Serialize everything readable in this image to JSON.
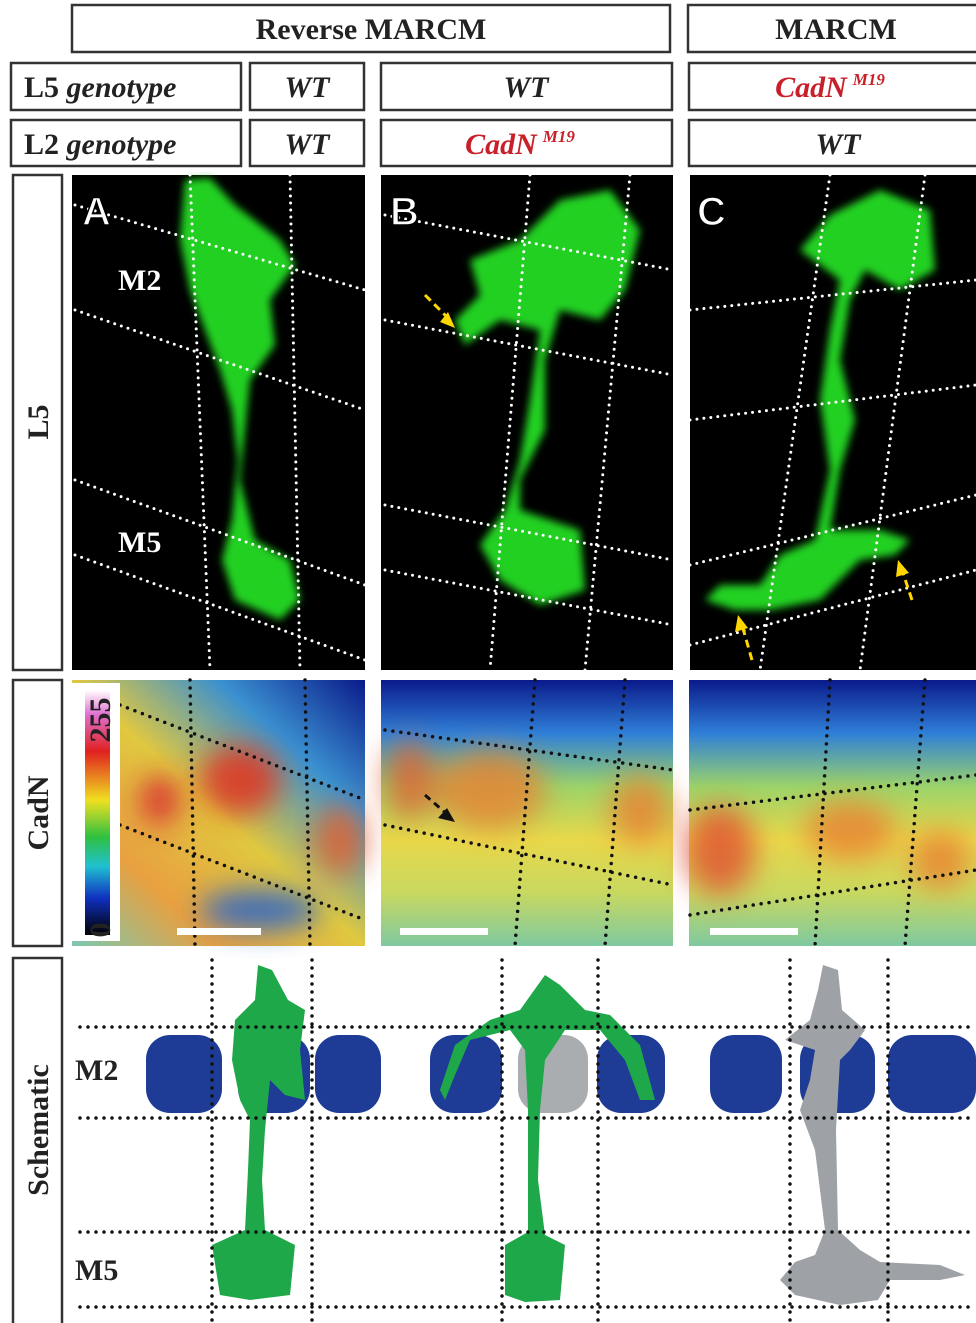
{
  "headers": {
    "reverse_marcm": "Reverse MARCM",
    "marcm": "MARCM"
  },
  "genotype_rows": [
    {
      "label": "L5",
      "label_suffix": "genotype",
      "cells": [
        "WT",
        "WT",
        {
          "base": "CadN",
          "sup": "M19"
        }
      ]
    },
    {
      "label": "L2",
      "label_suffix": "genotype",
      "cells": [
        "WT",
        {
          "base": "CadN",
          "sup": "M19"
        },
        "WT"
      ]
    }
  ],
  "row_labels": [
    "L5",
    "CadN",
    "Schematic"
  ],
  "panels": [
    "A",
    "B",
    "C"
  ],
  "layer_labels": {
    "top": "M2",
    "bottom": "M5"
  },
  "colorbar": {
    "max": "255",
    "min": "0"
  },
  "schematic_labels": {
    "top": "M2",
    "bottom": "M5"
  }
}
